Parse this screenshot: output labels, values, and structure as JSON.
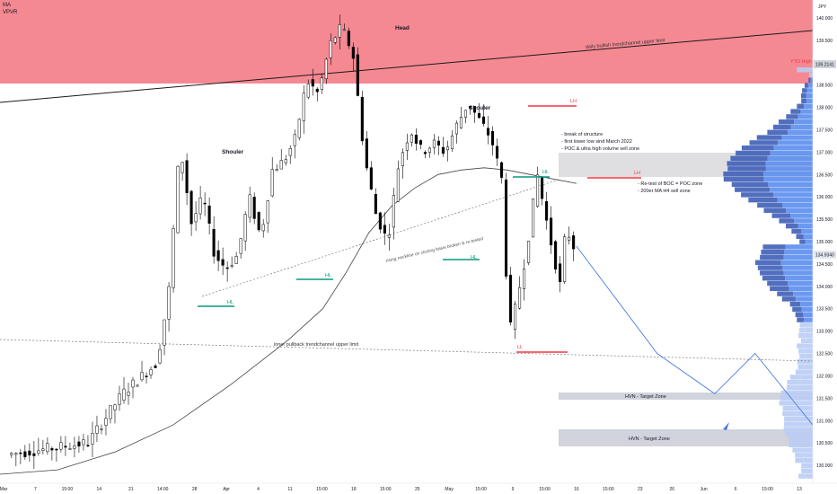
{
  "indicators": [
    "MA",
    "VPVR"
  ],
  "currency": "JPY",
  "colors": {
    "sell_zone": "#f4838c",
    "up_candle": "#ffffff",
    "down_candle": "#000000",
    "hl": "#089981",
    "lh": "#f23645",
    "vp_dark": "#3f5fb8",
    "vp_light": "#5b8ef0",
    "vp_pale": "#b9ccf5",
    "target_zone": "#d1d4dc",
    "poc_zone": "#d9d9dc",
    "projection": "#4a7ae0"
  },
  "chart_data": {
    "type": "candlestick",
    "symbol_currency": "JPY",
    "y_range": [
      129.6,
      140.4
    ],
    "price_ticks": [
      "140.000",
      "139.500",
      "139.000",
      "138.500",
      "138.000",
      "137.500",
      "137.000",
      "136.500",
      "136.000",
      "135.500",
      "135.000",
      "134.500",
      "134.000",
      "133.500",
      "133.000",
      "132.500",
      "132.000",
      "131.500",
      "131.000",
      "130.500",
      "130.000"
    ],
    "price_labels": [
      "139.2141",
      "134.9340"
    ],
    "last_price": 134.934,
    "current_price": 139.2141,
    "x_ticks": [
      "Mar",
      "7",
      "15:00",
      "14",
      "21",
      "14:00",
      "28",
      "Apr",
      "4",
      "11",
      "15:00",
      "18",
      "15:00",
      "25",
      "May",
      "15:00",
      "9",
      "15:00",
      "16",
      "15:00",
      "23",
      "26",
      "Jun",
      "6",
      "15:00",
      "13"
    ],
    "path": [
      [
        0,
        130.2
      ],
      [
        16,
        130.5
      ],
      [
        22,
        131.6
      ],
      [
        28,
        132.3
      ],
      [
        30,
        133.8
      ],
      [
        32,
        137.2
      ],
      [
        34,
        135.4
      ],
      [
        36,
        136.0
      ],
      [
        38,
        134.7
      ],
      [
        40,
        134.4
      ],
      [
        42,
        134.7
      ],
      [
        44,
        136.0
      ],
      [
        46,
        135.1
      ],
      [
        48,
        136.6
      ],
      [
        50,
        136.8
      ],
      [
        52,
        137.3
      ],
      [
        54,
        138.6
      ],
      [
        56,
        138.3
      ],
      [
        58,
        139.4
      ],
      [
        60,
        139.8
      ],
      [
        62,
        139.2
      ],
      [
        64,
        136.9
      ],
      [
        66,
        135.6
      ],
      [
        68,
        135.0
      ],
      [
        70,
        136.8
      ],
      [
        72,
        137.5
      ],
      [
        74,
        137.0
      ],
      [
        76,
        137.2
      ],
      [
        78,
        137.0
      ],
      [
        80,
        137.6
      ],
      [
        82,
        138.1
      ],
      [
        84,
        137.7
      ],
      [
        86,
        137.3
      ],
      [
        88,
        136.3
      ],
      [
        89,
        132.9
      ],
      [
        90,
        133.4
      ],
      [
        92,
        134.7
      ],
      [
        94,
        136.5
      ],
      [
        96,
        135.2
      ],
      [
        98,
        134.0
      ],
      [
        99,
        135.4
      ],
      [
        100,
        134.9
      ]
    ],
    "ma200": [
      [
        0,
        129.8
      ],
      [
        10,
        129.9
      ],
      [
        20,
        130.3
      ],
      [
        30,
        130.9
      ],
      [
        40,
        131.8
      ],
      [
        50,
        132.8
      ],
      [
        56,
        133.5
      ],
      [
        60,
        134.3
      ],
      [
        64,
        135.2
      ],
      [
        68,
        135.8
      ],
      [
        72,
        136.2
      ],
      [
        76,
        136.5
      ],
      [
        80,
        136.6
      ],
      [
        84,
        136.65
      ],
      [
        88,
        136.6
      ],
      [
        92,
        136.5
      ],
      [
        96,
        136.4
      ],
      [
        100,
        136.3
      ]
    ],
    "zones": [
      {
        "name": "supply",
        "from": 138.9,
        "to": 140.4
      },
      {
        "name": "poc_sell",
        "from": 136.8,
        "to": 137.3
      },
      {
        "name": "hvn_target_upper",
        "from": 131.4,
        "to": 131.55
      },
      {
        "name": "hvn_target_lower",
        "from": 130.6,
        "to": 130.85
      }
    ],
    "projection": [
      [
        100,
        134.9
      ],
      [
        114,
        132.5
      ],
      [
        124,
        131.6
      ],
      [
        131,
        132.5
      ],
      [
        141,
        130.9
      ]
    ],
    "patterns": [
      "Head",
      "Shouler",
      "Shouler"
    ],
    "swing_labels": [
      "HL",
      "HL",
      "HL",
      "HL",
      "LH",
      "LH",
      "LL"
    ],
    "annotations": {
      "trend_upper": "daily bullish trendchannel upper limit",
      "ytd_high": "YTD High",
      "boc_lines": [
        "- break of structure",
        "- first lower low sind March 2022",
        "- POC & ultra high volume sell zone"
      ],
      "retest_lines": [
        "- Re-test of BOC = POC zone",
        "- 200er MA H4 sell zone"
      ],
      "neckline": "rising neckline on closing basis broken & re-tested",
      "pullback": "inner pullback trendchannel upper limit",
      "hvn_target": "HVN - Target Zone"
    }
  }
}
